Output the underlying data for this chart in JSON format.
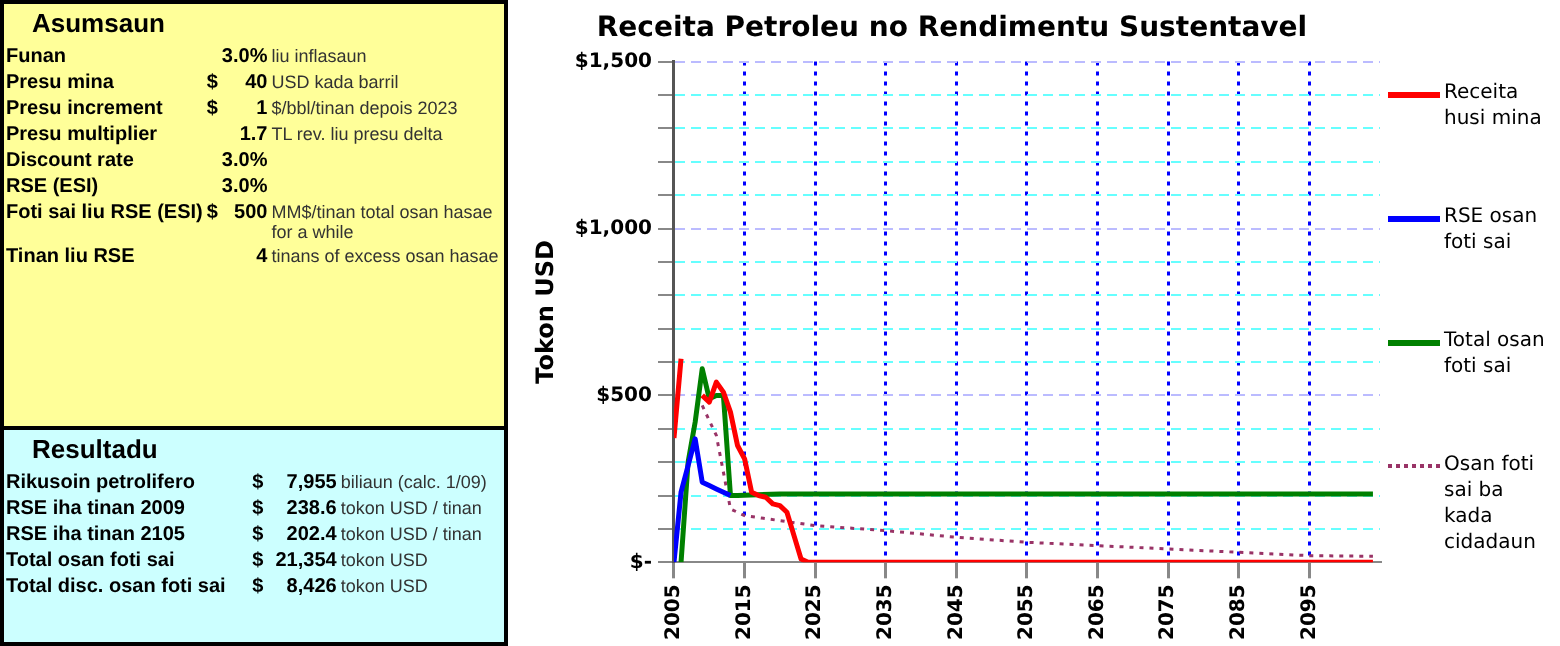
{
  "chart_data": [
    {
      "type": "other",
      "title": "Asumsaun",
      "annotations": [
        "Funan\t\t3.0%\tliu inflasaun",
        "Presu mina\t$\t40\tUSD kada barril",
        "Presu increment\t$\t1\t$/bbl/tinan depois 2023",
        "Presu multiplier\t\t1.7\tTL rev. liu presu delta",
        "Discount rate\t\t3.0%\t",
        "RSE (ESI)\t\t3.0%\t",
        "Foti sai liu RSE (ESI)\t$\t500\tMM$/tinan total osan hasae for a while",
        "Tinan liu RSE\t\t4\ttinans of excess osan hasae"
      ]
    },
    {
      "type": "other",
      "title": "Resultadu",
      "annotations": [
        "Rikusoin petrolifero\t$\t7,955\tbiliaun (calc. 1/09)",
        "RSE iha tinan 2009\t$\t238.6\ttokon USD / tinan",
        "RSE iha tinan 2105\t$\t202.4\ttokon USD / tinan",
        "Total osan foti sai\t$\t21,354\ttokon USD",
        "Total disc. osan foti sai\t$\t8,426\ttokon USD"
      ]
    },
    {
      "type": "line",
      "title": "Receita Petroleu no Rendimentu Sustentavel",
      "ylabel": "Tokon USD",
      "xlim": [
        2005,
        2105
      ],
      "xticks": [
        2005,
        2015,
        2025,
        2035,
        2045,
        2055,
        2065,
        2075,
        2085,
        2095
      ],
      "ylim": [
        0,
        1500
      ],
      "yticks": [
        {
          "value": 0,
          "label": "$-"
        },
        {
          "value": 100,
          "label": null
        },
        {
          "value": 200,
          "label": null
        },
        {
          "value": 300,
          "label": null
        },
        {
          "value": 400,
          "label": null
        },
        {
          "value": 500,
          "label": "$500"
        },
        {
          "value": 600,
          "label": null
        },
        {
          "value": 700,
          "label": null
        },
        {
          "value": 800,
          "label": null
        },
        {
          "value": 900,
          "label": null
        },
        {
          "value": 1000,
          "label": "$1,000"
        },
        {
          "value": 1100,
          "label": null
        },
        {
          "value": 1200,
          "label": null
        },
        {
          "value": 1300,
          "label": null
        },
        {
          "value": 1400,
          "label": null
        },
        {
          "value": 1500,
          "label": "$1,500"
        }
      ],
      "grid": true,
      "legend": "right",
      "marker": "none",
      "series": [
        {
          "name": "Receita husi mina",
          "color": "#ff0000",
          "line_style": "solid",
          "x": [
            2005,
            2006,
            2007,
            2008,
            2009,
            2010,
            2011,
            2012,
            2013,
            2014,
            2015,
            2016,
            2017,
            2018,
            2019,
            2020,
            2021,
            2022,
            2023,
            2024,
            2104
          ],
          "values": [
            372,
            610,
            null,
            null,
            500,
            480,
            540,
            510,
            450,
            350,
            310,
            210,
            200,
            195,
            175,
            170,
            150,
            80,
            10,
            0,
            0
          ]
        },
        {
          "name": "RSE osan foti sai",
          "color": "#0000ff",
          "line_style": "solid",
          "x": [
            2005,
            2006,
            2007,
            2008,
            2009,
            2010,
            2011,
            2012,
            2013
          ],
          "values": [
            0,
            210,
            290,
            370,
            240,
            230,
            220,
            210,
            200
          ]
        },
        {
          "name": "Total osan foti sai",
          "color": "#008000",
          "line_style": "solid",
          "x": [
            2006,
            2007,
            2008,
            2009,
            2010,
            2011,
            2012,
            2013,
            2014,
            2020,
            2104
          ],
          "values": [
            0,
            300,
            420,
            580,
            490,
            500,
            500,
            200,
            200,
            205,
            205
          ]
        },
        {
          "name": "Osan foti sai ba kada cidadaun",
          "color": "#993366",
          "line_style": "dotted",
          "x": [
            2009,
            2011,
            2013,
            2015,
            2025,
            2035,
            2045,
            2055,
            2065,
            2075,
            2085,
            2095,
            2104
          ],
          "values": [
            470,
            380,
            160,
            140,
            110,
            95,
            75,
            60,
            50,
            40,
            30,
            20,
            18
          ]
        }
      ]
    }
  ]
}
